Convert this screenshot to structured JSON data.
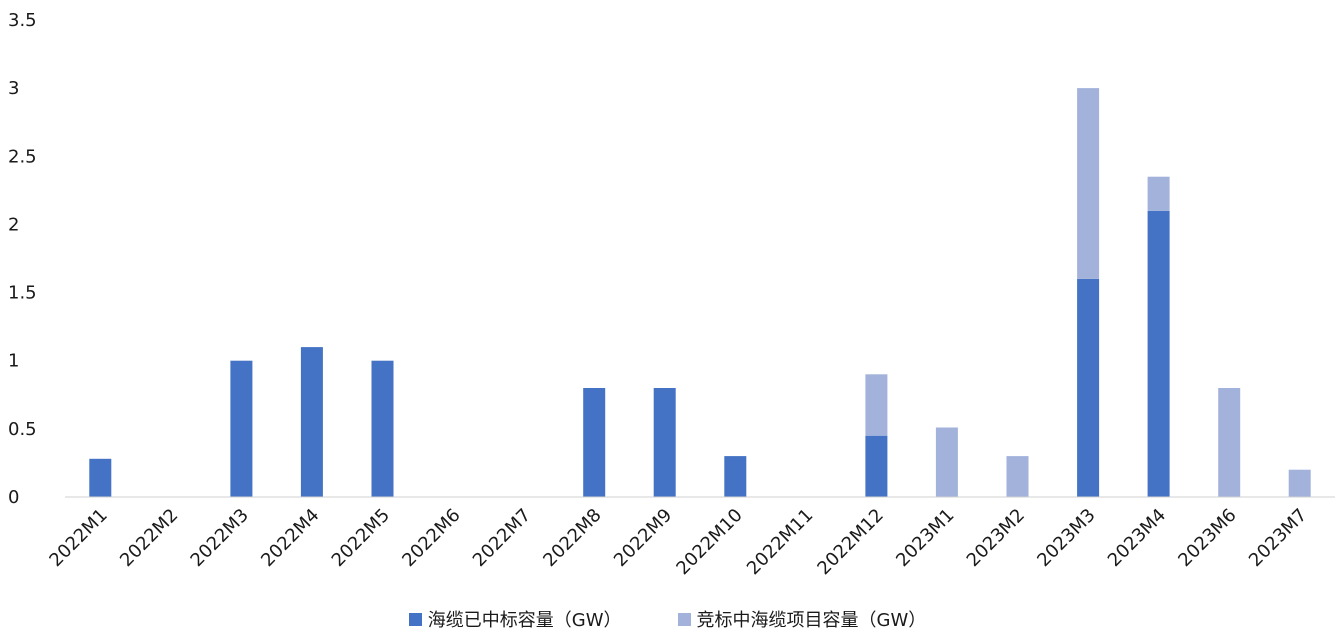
{
  "chart_data": {
    "type": "bar",
    "stacked": true,
    "categories": [
      "2022M1",
      "2022M2",
      "2022M3",
      "2022M4",
      "2022M5",
      "2022M6",
      "2022M7",
      "2022M8",
      "2022M9",
      "2022M10",
      "2022M11",
      "2022M12",
      "2023M1",
      "2023M2",
      "2023M3",
      "2023M4",
      "2023M6",
      "2023M7"
    ],
    "series": [
      {
        "name": "海缆已中标容量（GW）",
        "color": "#4472C4",
        "values": [
          0.28,
          0,
          1.0,
          1.1,
          1.0,
          0,
          0,
          0.8,
          0.8,
          0.3,
          0,
          0.45,
          0,
          0,
          1.6,
          2.1,
          0,
          0
        ]
      },
      {
        "name": "竞标中海缆项目容量（GW）",
        "color": "#A2B2DB",
        "values": [
          0,
          0,
          0,
          0,
          0,
          0,
          0,
          0,
          0,
          0,
          0,
          0.45,
          0.51,
          0.3,
          1.4,
          0.25,
          0.8,
          0.2
        ]
      }
    ],
    "ylim": [
      0,
      3.5
    ],
    "yticks": [
      "0",
      "0.5",
      "1",
      "1.5",
      "2",
      "2.5",
      "3",
      "3.5"
    ],
    "grid": false,
    "legend_position": "bottom"
  }
}
